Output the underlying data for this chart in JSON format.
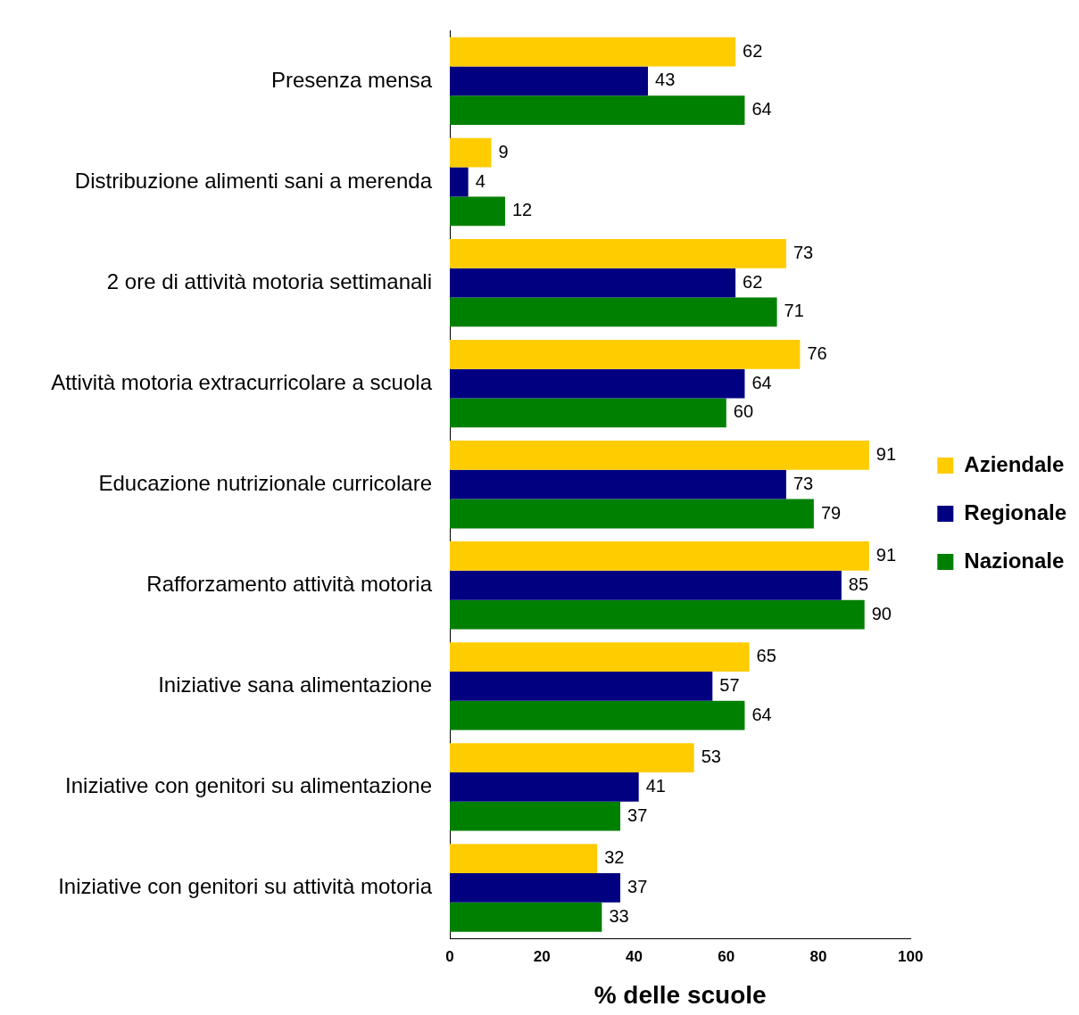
{
  "chart_data": {
    "type": "bar",
    "orientation": "horizontal",
    "xlabel": "% delle scuole",
    "categories": [
      "Presenza mensa",
      "Distribuzione alimenti sani a merenda",
      "2 ore di attività motoria settimanali",
      "Attività motoria extracurricolare a scuola",
      "Educazione nutrizionale curricolare",
      "Rafforzamento attività motoria",
      "Iniziative sana alimentazione",
      "Iniziative con genitori su alimentazione",
      "Iniziative con genitori su attività motoria"
    ],
    "series": [
      {
        "name": "Aziendale",
        "color": "#ffcc00",
        "values": [
          62,
          9,
          73,
          76,
          91,
          91,
          65,
          53,
          32
        ]
      },
      {
        "name": "Regionale",
        "color": "#000080",
        "values": [
          43,
          4,
          62,
          64,
          73,
          85,
          57,
          41,
          37
        ]
      },
      {
        "name": "Nazionale",
        "color": "#008000",
        "values": [
          64,
          12,
          71,
          60,
          79,
          90,
          64,
          37,
          33
        ]
      }
    ],
    "xlim": [
      0,
      100
    ],
    "xticks": [
      0,
      20,
      40,
      60,
      80,
      100
    ],
    "grid": false,
    "legend": "right",
    "data_labels": true
  }
}
